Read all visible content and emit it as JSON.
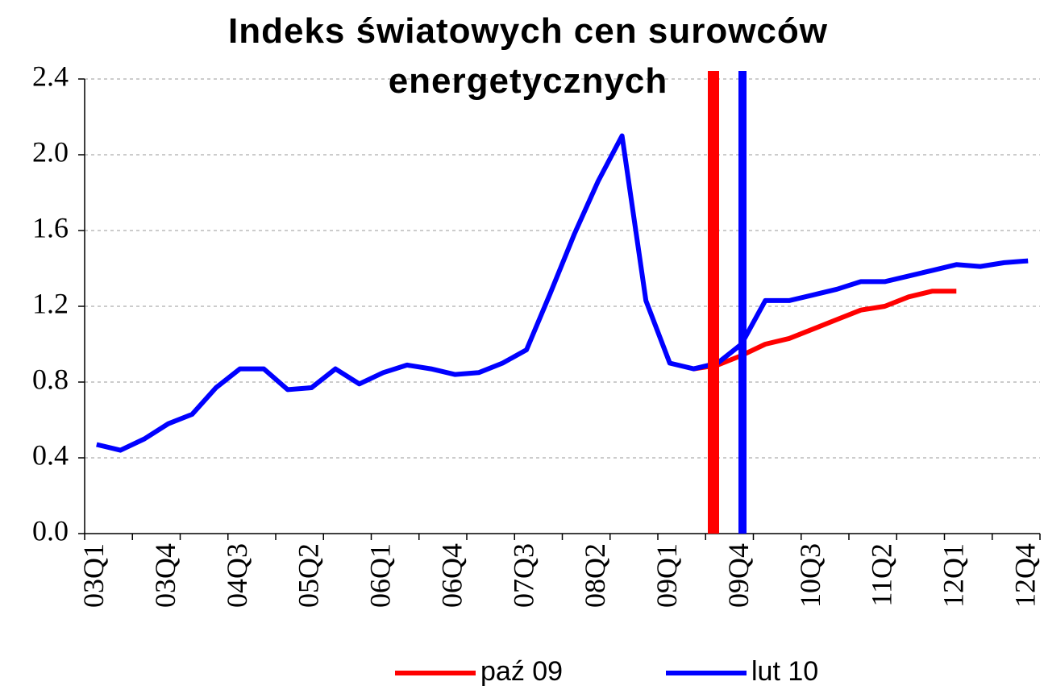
{
  "chart_data": {
    "type": "line",
    "title": "Indeks światowych cen surowców energetycznych",
    "categories": [
      "03Q1",
      null,
      null,
      "03Q4",
      null,
      null,
      "04Q3",
      null,
      null,
      "05Q2",
      null,
      null,
      "06Q1",
      null,
      null,
      "06Q4",
      null,
      null,
      "07Q3",
      null,
      null,
      "08Q2",
      null,
      null,
      "09Q1",
      null,
      null,
      "09Q4",
      null,
      null,
      "10Q3",
      null,
      null,
      "11Q2",
      null,
      null,
      "12Q1",
      null,
      null,
      "12Q4"
    ],
    "series": [
      {
        "name": "paź 09",
        "color": "#ff0000",
        "values": [
          null,
          null,
          null,
          null,
          null,
          null,
          null,
          null,
          null,
          null,
          null,
          null,
          null,
          null,
          null,
          null,
          null,
          null,
          null,
          null,
          null,
          null,
          null,
          null,
          null,
          0.87,
          0.89,
          0.94,
          1.0,
          1.03,
          1.08,
          1.13,
          1.18,
          1.2,
          1.25,
          1.28,
          1.28,
          null,
          null,
          null
        ]
      },
      {
        "name": "lut 10",
        "color": "#0000ff",
        "values": [
          0.47,
          0.44,
          0.5,
          0.58,
          0.63,
          0.77,
          0.87,
          0.87,
          0.76,
          0.77,
          0.87,
          0.79,
          0.85,
          0.89,
          0.87,
          0.84,
          0.85,
          0.9,
          0.97,
          1.27,
          1.58,
          1.86,
          2.1,
          1.23,
          0.9,
          0.87,
          0.9,
          1.0,
          1.23,
          1.23,
          1.26,
          1.29,
          1.33,
          1.33,
          1.36,
          1.39,
          1.42,
          1.41,
          1.43,
          1.44
        ]
      }
    ],
    "ylim": [
      0,
      2.4
    ],
    "yticks": [
      {
        "value": 0,
        "label": "0.0"
      },
      0.4,
      0.8,
      1.2,
      1.6,
      {
        "value": 2,
        "label": "2.0"
      },
      2.4
    ],
    "grid": true
  }
}
